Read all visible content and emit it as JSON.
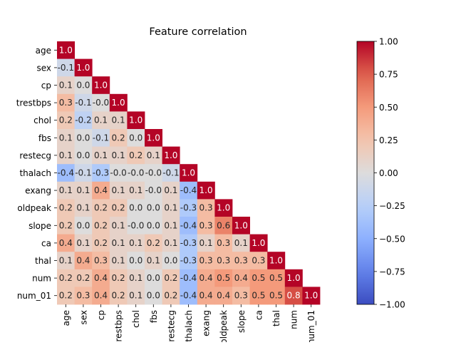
{
  "chart_data": {
    "type": "heatmap",
    "title": "Feature correlation",
    "labels": [
      "age",
      "sex",
      "cp",
      "trestbps",
      "chol",
      "fbs",
      "restecg",
      "thalach",
      "exang",
      "oldpeak",
      "slope",
      "ca",
      "thal",
      "num",
      "num_01"
    ],
    "x_tick_labels": [
      "age",
      "sex",
      "cp",
      "trestbps",
      "chol",
      "fbs",
      "restecg",
      "thalach",
      "exang",
      "oldpeak",
      "slope",
      "ca",
      "thal",
      "num",
      "num_01"
    ],
    "matrix_lower": [
      [
        1.0
      ],
      [
        -0.1,
        1.0
      ],
      [
        0.1,
        0.0,
        1.0
      ],
      [
        0.3,
        -0.1,
        -0.0,
        1.0
      ],
      [
        0.2,
        -0.2,
        0.1,
        0.1,
        1.0
      ],
      [
        0.1,
        0.0,
        -0.1,
        0.2,
        0.0,
        1.0
      ],
      [
        0.1,
        0.0,
        0.1,
        0.1,
        0.2,
        0.1,
        1.0
      ],
      [
        -0.4,
        -0.1,
        -0.3,
        -0.0,
        -0.0,
        -0.0,
        -0.1,
        1.0
      ],
      [
        0.1,
        0.1,
        0.4,
        0.1,
        0.1,
        -0.0,
        0.1,
        -0.4,
        1.0
      ],
      [
        0.2,
        0.1,
        0.2,
        0.2,
        0.0,
        0.0,
        0.1,
        -0.3,
        0.3,
        1.0
      ],
      [
        0.2,
        0.0,
        0.2,
        0.1,
        -0.0,
        0.0,
        0.1,
        -0.4,
        0.3,
        0.6,
        1.0
      ],
      [
        0.4,
        0.1,
        0.2,
        0.1,
        0.1,
        0.2,
        0.1,
        -0.3,
        0.1,
        0.3,
        0.1,
        1.0
      ],
      [
        0.1,
        0.4,
        0.3,
        0.1,
        0.0,
        0.1,
        0.0,
        -0.3,
        0.3,
        0.3,
        0.3,
        0.3,
        1.0
      ],
      [
        0.2,
        0.2,
        0.4,
        0.2,
        0.1,
        0.0,
        0.2,
        -0.4,
        0.4,
        0.5,
        0.4,
        0.5,
        0.5,
        1.0
      ],
      [
        0.2,
        0.3,
        0.4,
        0.2,
        0.1,
        0.0,
        0.2,
        -0.4,
        0.4,
        0.4,
        0.3,
        0.5,
        0.5,
        0.8,
        1.0
      ]
    ],
    "value_format": "1 decimal",
    "colormap": "coolwarm",
    "vmin": -1.0,
    "vmax": 1.0,
    "colorbar_ticks": [
      -1.0,
      -0.75,
      -0.5,
      -0.25,
      0.0,
      0.25,
      0.5,
      0.75,
      1.0
    ],
    "colorbar_tick_labels": [
      "−1.00",
      "−0.75",
      "−0.50",
      "−0.25",
      "0.00",
      "0.25",
      "0.50",
      "0.75",
      "1.00"
    ],
    "colors": {
      "low": "#3b4cc0",
      "mid": "#dddddd",
      "high": "#b40426"
    }
  }
}
